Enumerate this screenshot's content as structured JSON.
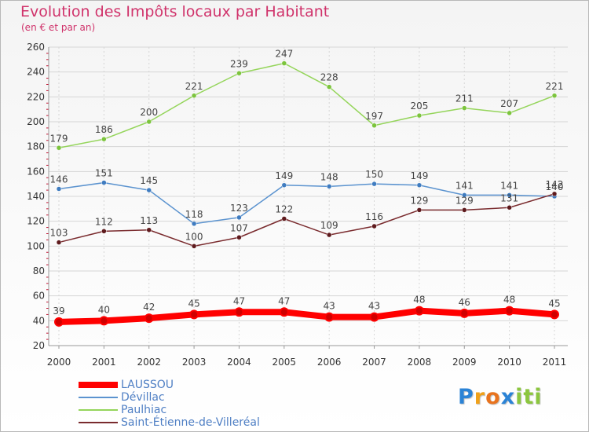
{
  "colors": {
    "title": "#d0336b",
    "legend_text": "#4f7fc4",
    "grid": "#d6d6d6",
    "axis": "#999999"
  },
  "chart_data": {
    "type": "line",
    "title": "Evolution des Impôts locaux par Habitant",
    "subtitle": "(en € et par an)",
    "xlabel": "",
    "ylabel": "",
    "x": [
      "2000",
      "2001",
      "2002",
      "2003",
      "2004",
      "2005",
      "2006",
      "2007",
      "2008",
      "2009",
      "2010",
      "2011"
    ],
    "ylim": [
      20,
      260
    ],
    "yticks": [
      20,
      40,
      60,
      80,
      100,
      120,
      140,
      160,
      180,
      200,
      220,
      240,
      260
    ],
    "grid": true,
    "legend_position": "bottom-left",
    "series": [
      {
        "name": "LAUSSOU",
        "values": [
          39,
          40,
          42,
          45,
          47,
          47,
          43,
          43,
          48,
          46,
          48,
          45
        ],
        "color": "#ff0000",
        "marker": "#d00000",
        "thick": true
      },
      {
        "name": "Dévillac",
        "values": [
          146,
          151,
          145,
          118,
          123,
          149,
          148,
          150,
          149,
          141,
          141,
          140
        ],
        "color": "#5b93cf",
        "marker": "#3f7cc0",
        "thick": false
      },
      {
        "name": "Paulhiac",
        "values": [
          179,
          186,
          200,
          221,
          239,
          247,
          228,
          197,
          205,
          211,
          207,
          221
        ],
        "color": "#95d55b",
        "marker": "#7cc43d",
        "thick": false
      },
      {
        "name": "Saint-Étienne-de-Villeréal",
        "values": [
          103,
          112,
          113,
          100,
          107,
          122,
          109,
          116,
          129,
          129,
          131,
          142
        ],
        "color": "#7a2b2e",
        "marker": "#5e1a1d",
        "thick": false
      }
    ]
  },
  "logo": {
    "letters": [
      {
        "char": "P",
        "color": "#2b83d6"
      },
      {
        "char": "r",
        "color": "#f0a11a"
      },
      {
        "char": "o",
        "color": "#e8731e"
      },
      {
        "char": "x",
        "color": "#2b83d6"
      },
      {
        "char": "i",
        "color": "#8cc63f"
      },
      {
        "char": "t",
        "color": "#8cc63f"
      },
      {
        "char": "i",
        "color": "#8cc63f"
      }
    ]
  }
}
